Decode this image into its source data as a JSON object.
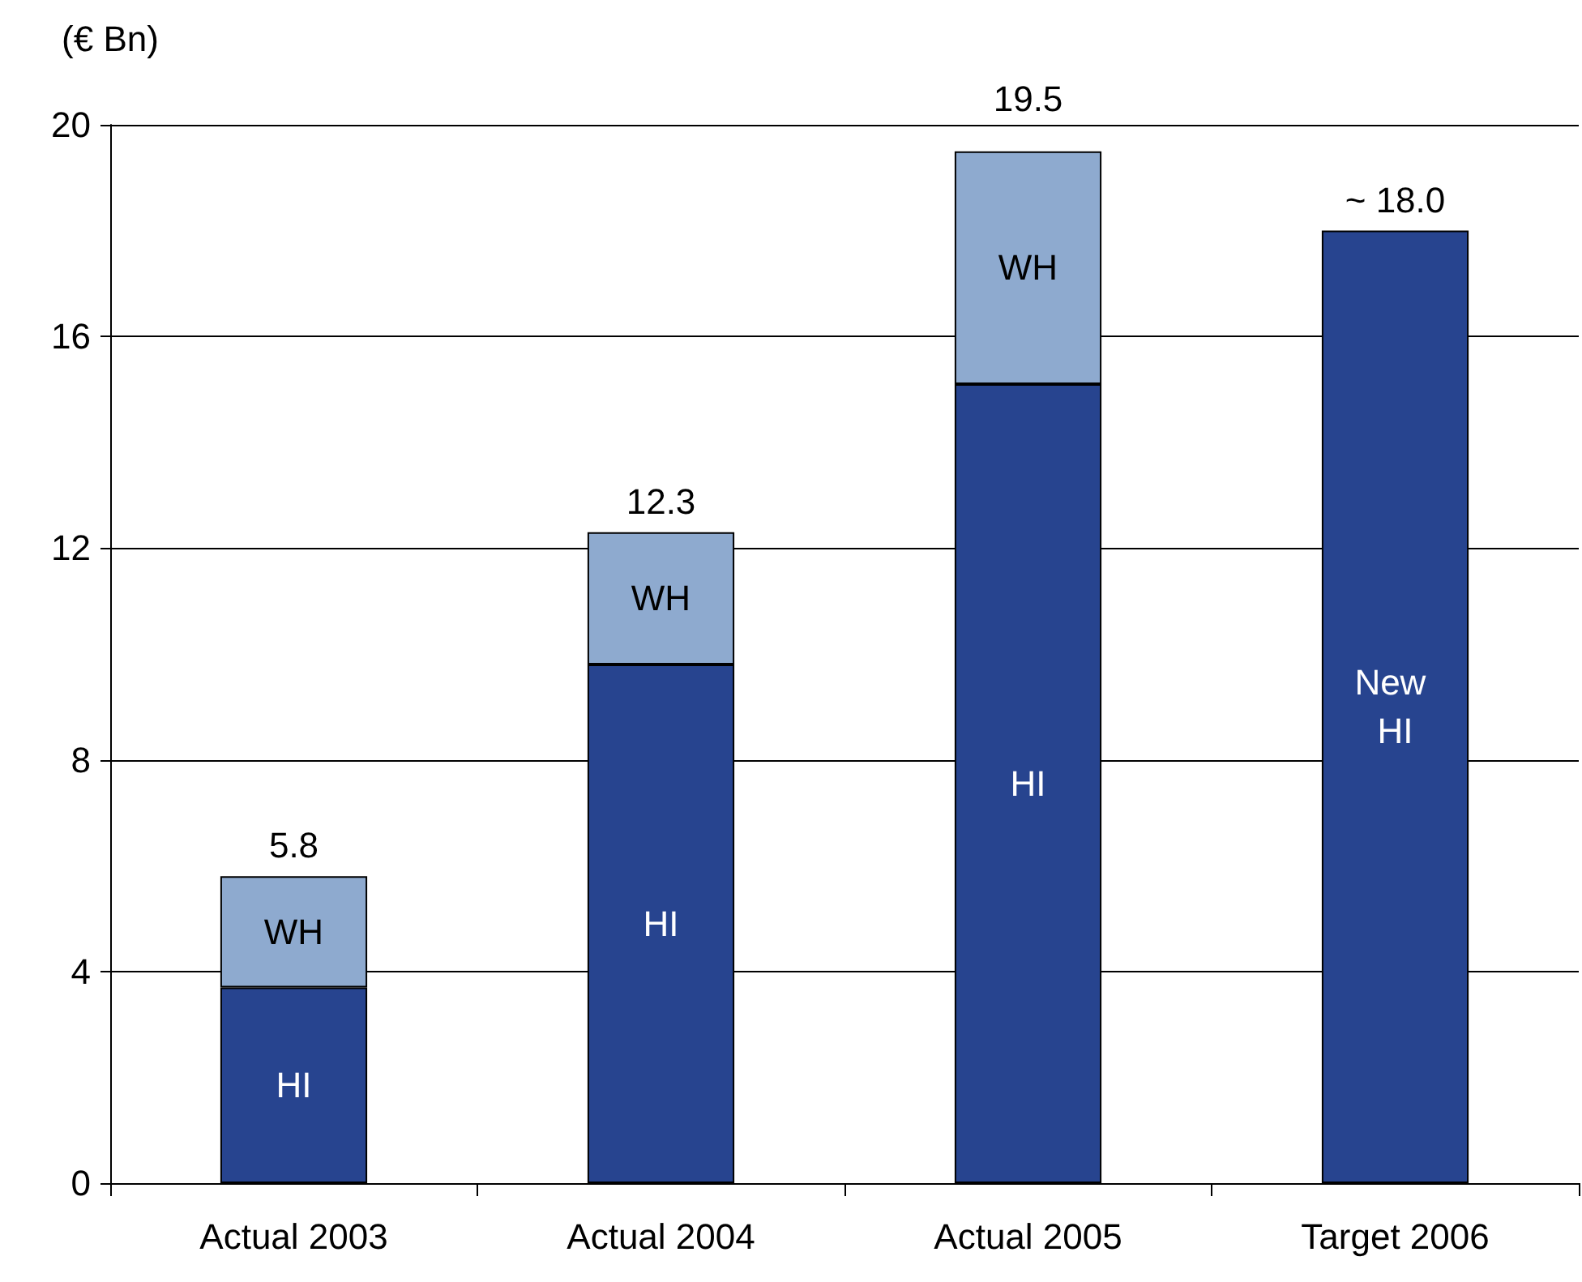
{
  "chart_data": {
    "type": "bar",
    "ylabel": "(€ Bn)",
    "categories": [
      "Actual 2003",
      "Actual 2004",
      "Actual 2005",
      "Target 2006"
    ],
    "stacked": true,
    "series": [
      {
        "name": "HI",
        "color": "#27448f",
        "values": [
          3.7,
          9.8,
          15.1,
          null
        ]
      },
      {
        "name": "WH",
        "color": "#8eaacf",
        "values": [
          2.1,
          2.5,
          4.4,
          null
        ]
      },
      {
        "name": "New HI",
        "color": "#27448f",
        "values": [
          null,
          null,
          null,
          18.0
        ]
      }
    ],
    "totals": [
      "5.8",
      "12.3",
      "19.5",
      "~ 18.0"
    ],
    "ylim": [
      0,
      20
    ],
    "yticks": [
      0,
      4,
      8,
      12,
      16,
      20
    ],
    "grid": "y",
    "legend": false
  }
}
